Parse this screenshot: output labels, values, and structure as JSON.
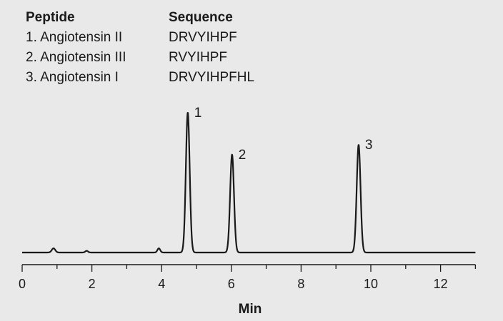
{
  "legend": {
    "header_peptide": "Peptide",
    "header_sequence": "Sequence",
    "rows": [
      {
        "label": "1.  Angiotensin II",
        "sequence": "DRVYIHPF"
      },
      {
        "label": "2.  Angiotensin III",
        "sequence": "RVYIHPF"
      },
      {
        "label": "3.  Angiotensin I",
        "sequence": "DRVYIHPFHL"
      }
    ]
  },
  "chart_data": {
    "type": "line",
    "xlabel": "Min",
    "xlim": [
      0,
      13
    ],
    "xticks": [
      0,
      2,
      4,
      6,
      8,
      10,
      12
    ],
    "ylim": [
      0,
      1
    ],
    "grid": false,
    "baseline": 0.0,
    "peaks": [
      {
        "label": "1",
        "x": 4.75,
        "height": 1.0,
        "width": 0.055
      },
      {
        "label": "2",
        "x": 6.02,
        "height": 0.7,
        "width": 0.055
      },
      {
        "label": "3",
        "x": 9.65,
        "height": 0.77,
        "width": 0.055
      }
    ],
    "minor_bumps": [
      {
        "x": 0.9,
        "height": 0.03,
        "width": 0.05
      },
      {
        "x": 1.85,
        "height": 0.012,
        "width": 0.04
      },
      {
        "x": 3.92,
        "height": 0.03,
        "width": 0.04
      }
    ]
  },
  "colors": {
    "background": "#e9e9ea",
    "trace": "#1a1a1a",
    "axis": "#1a1a1a"
  }
}
